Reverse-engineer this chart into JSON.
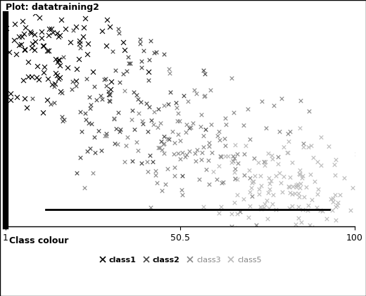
{
  "title": "Plot: datatraining2",
  "xlabel_ticks": [
    1,
    50.5,
    100
  ],
  "xlabel_tick_labels": [
    "1",
    "50.5",
    "100"
  ],
  "xlim": [
    1,
    100
  ],
  "ylim": [
    0,
    100
  ],
  "legend_title": "Class colour",
  "legend_labels": [
    "class1",
    "class2",
    "class3",
    "class5"
  ],
  "legend_fontweights": [
    "bold",
    "bold",
    "normal",
    "normal"
  ],
  "background_color": "#ffffff",
  "plot_bg_color": "#ffffff",
  "border_color": "#000000",
  "classes": [
    {
      "label": "class1",
      "color": "#000000",
      "marker": "x",
      "markersize": 5,
      "x_center": 12,
      "y_center": 82,
      "x_spread": 12,
      "y_spread": 14,
      "n_points": 120
    },
    {
      "label": "class2",
      "color": "#444444",
      "marker": "x",
      "markersize": 4,
      "x_center": 32,
      "y_center": 58,
      "x_spread": 12,
      "y_spread": 16,
      "n_points": 100
    },
    {
      "label": "class3",
      "color": "#888888",
      "marker": "x",
      "markersize": 4,
      "x_center": 58,
      "y_center": 38,
      "x_spread": 14,
      "y_spread": 14,
      "n_points": 130
    },
    {
      "label": "class5",
      "color": "#bbbbbb",
      "marker": "x",
      "markersize": 4,
      "x_center": 82,
      "y_center": 16,
      "x_spread": 12,
      "y_spread": 12,
      "n_points": 150
    }
  ],
  "seed": 42
}
